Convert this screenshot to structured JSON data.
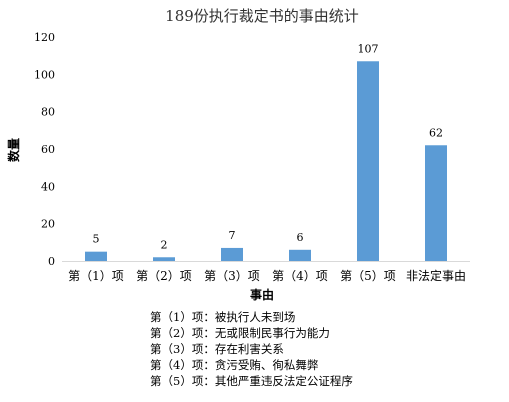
{
  "chart_data": {
    "type": "bar",
    "title": "189份执行裁定书的事由统计",
    "xlabel": "事由",
    "ylabel": "数量",
    "categories": [
      "第（1）项",
      "第（2）项",
      "第（3）项",
      "第（4）项",
      "第（5）项",
      "非法定事由"
    ],
    "values": [
      5,
      2,
      7,
      6,
      107,
      62
    ],
    "ylim": [
      0,
      120
    ],
    "yticks": [
      0,
      20,
      40,
      60,
      80,
      100,
      120
    ],
    "grid": false,
    "legend": "bottom",
    "bar_color": "#5b9bd5",
    "notes": [
      "第（1）项：被执行人未到场",
      "第（2）项：无或限制民事行为能力",
      "第（3）项：存在利害关系",
      "第（4）项：贪污受贿、徇私舞弊",
      "第（5）项：其他严重违反法定公证程序"
    ]
  }
}
